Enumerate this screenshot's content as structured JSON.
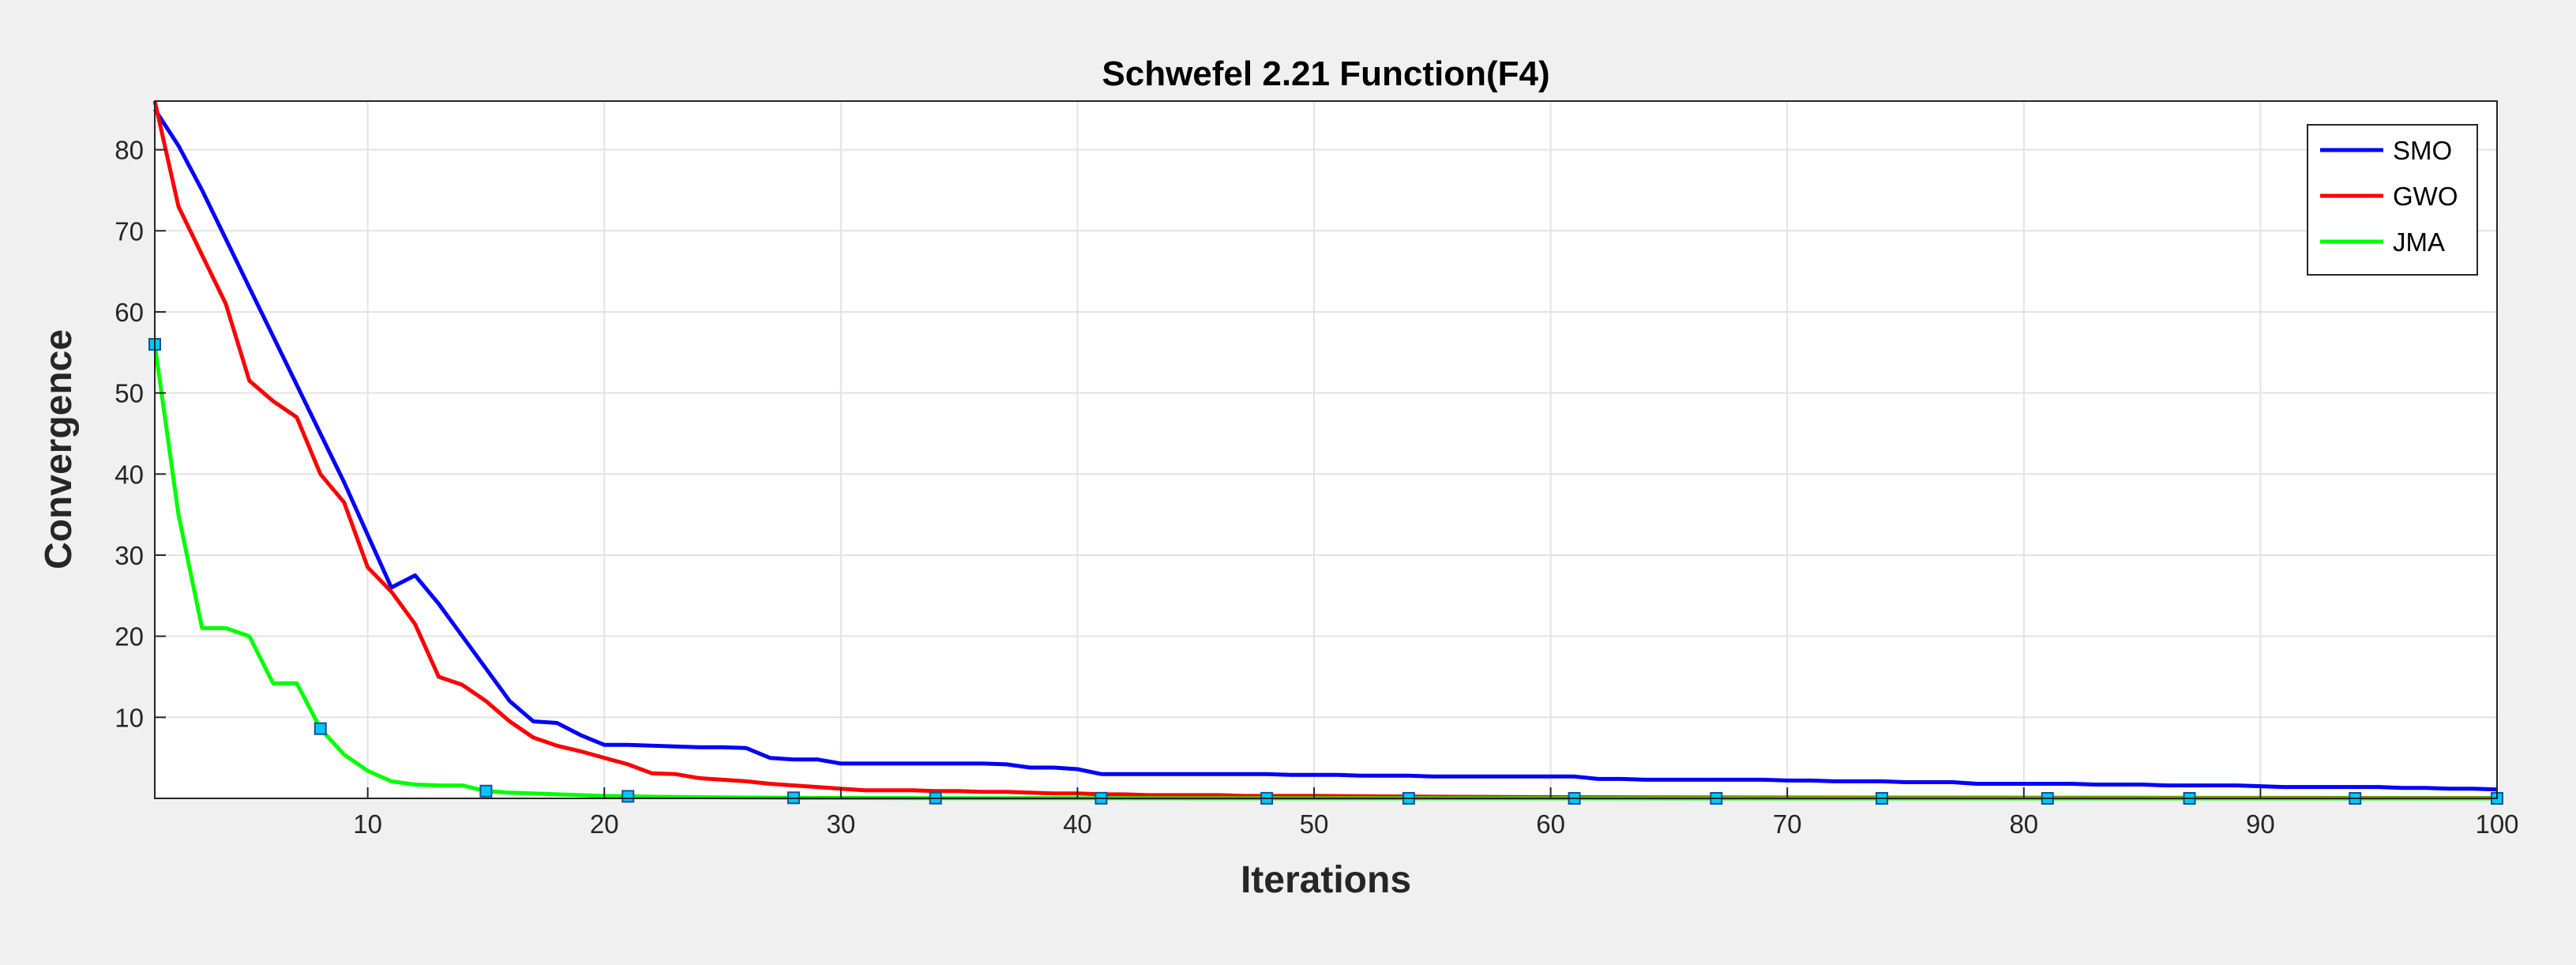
{
  "chart_data": {
    "type": "line",
    "title": "Schwefel 2.21 Function(F4)",
    "xlabel": "Iterations",
    "ylabel": "Convergence",
    "xlim": [
      1,
      100
    ],
    "ylim": [
      0,
      86
    ],
    "xticks": [
      10,
      20,
      30,
      40,
      50,
      60,
      70,
      80,
      90,
      100
    ],
    "yticks": [
      10,
      20,
      30,
      40,
      50,
      60,
      70,
      80
    ],
    "grid": true,
    "legend_position": "top-right",
    "series": [
      {
        "name": "SMO",
        "color": "#0000ff",
        "markers": false,
        "points": [
          [
            1,
            85
          ],
          [
            2,
            80.5
          ],
          [
            3,
            75
          ],
          [
            4,
            69
          ],
          [
            5,
            63
          ],
          [
            6,
            57
          ],
          [
            7,
            51
          ],
          [
            8,
            45
          ],
          [
            9,
            39
          ],
          [
            10,
            32.5
          ],
          [
            11,
            26
          ],
          [
            12,
            27.5
          ],
          [
            13,
            24
          ],
          [
            14,
            20
          ],
          [
            15,
            16
          ],
          [
            16,
            12
          ],
          [
            17,
            9.5
          ],
          [
            18,
            9.3
          ],
          [
            19,
            7.8
          ],
          [
            20,
            6.6
          ],
          [
            21,
            6.6
          ],
          [
            22,
            6.5
          ],
          [
            23,
            6.4
          ],
          [
            24,
            6.3
          ],
          [
            25,
            6.3
          ],
          [
            26,
            6.2
          ],
          [
            27,
            5
          ],
          [
            28,
            4.8
          ],
          [
            29,
            4.8
          ],
          [
            30,
            4.3
          ],
          [
            31,
            4.3
          ],
          [
            32,
            4.3
          ],
          [
            33,
            4.3
          ],
          [
            34,
            4.3
          ],
          [
            35,
            4.3
          ],
          [
            36,
            4.3
          ],
          [
            37,
            4.2
          ],
          [
            38,
            3.8
          ],
          [
            39,
            3.8
          ],
          [
            40,
            3.6
          ],
          [
            41,
            3
          ],
          [
            42,
            3
          ],
          [
            43,
            3
          ],
          [
            44,
            3
          ],
          [
            45,
            3
          ],
          [
            46,
            3
          ],
          [
            47,
            3
          ],
          [
            48,
            3
          ],
          [
            49,
            2.9
          ],
          [
            50,
            2.9
          ],
          [
            51,
            2.9
          ],
          [
            52,
            2.8
          ],
          [
            53,
            2.8
          ],
          [
            54,
            2.8
          ],
          [
            55,
            2.7
          ],
          [
            56,
            2.7
          ],
          [
            57,
            2.7
          ],
          [
            58,
            2.7
          ],
          [
            59,
            2.7
          ],
          [
            60,
            2.7
          ],
          [
            61,
            2.7
          ],
          [
            62,
            2.4
          ],
          [
            63,
            2.4
          ],
          [
            64,
            2.3
          ],
          [
            65,
            2.3
          ],
          [
            66,
            2.3
          ],
          [
            67,
            2.3
          ],
          [
            68,
            2.3
          ],
          [
            69,
            2.3
          ],
          [
            70,
            2.2
          ],
          [
            71,
            2.2
          ],
          [
            72,
            2.1
          ],
          [
            73,
            2.1
          ],
          [
            74,
            2.1
          ],
          [
            75,
            2
          ],
          [
            76,
            2
          ],
          [
            77,
            2
          ],
          [
            78,
            1.8
          ],
          [
            79,
            1.8
          ],
          [
            80,
            1.8
          ],
          [
            81,
            1.8
          ],
          [
            82,
            1.8
          ],
          [
            83,
            1.7
          ],
          [
            84,
            1.7
          ],
          [
            85,
            1.7
          ],
          [
            86,
            1.6
          ],
          [
            87,
            1.6
          ],
          [
            88,
            1.6
          ],
          [
            89,
            1.6
          ],
          [
            90,
            1.5
          ],
          [
            91,
            1.4
          ],
          [
            92,
            1.4
          ],
          [
            93,
            1.4
          ],
          [
            94,
            1.4
          ],
          [
            95,
            1.4
          ],
          [
            96,
            1.3
          ],
          [
            97,
            1.3
          ],
          [
            98,
            1.2
          ],
          [
            99,
            1.2
          ],
          [
            100,
            1.1
          ]
        ]
      },
      {
        "name": "GWO",
        "color": "#ff0000",
        "markers": false,
        "points": [
          [
            1,
            86
          ],
          [
            2,
            73
          ],
          [
            3,
            67
          ],
          [
            4,
            61
          ],
          [
            5,
            51.5
          ],
          [
            6,
            49
          ],
          [
            7,
            47
          ],
          [
            8,
            40
          ],
          [
            9,
            36.5
          ],
          [
            10,
            28.5
          ],
          [
            11,
            25.5
          ],
          [
            12,
            21.5
          ],
          [
            13,
            15
          ],
          [
            14,
            14
          ],
          [
            15,
            12
          ],
          [
            16,
            9.5
          ],
          [
            17,
            7.5
          ],
          [
            18,
            6.5
          ],
          [
            19,
            5.8
          ],
          [
            20,
            5
          ],
          [
            21,
            4.2
          ],
          [
            22,
            3.1
          ],
          [
            23,
            3
          ],
          [
            24,
            2.5
          ],
          [
            25,
            2.3
          ],
          [
            26,
            2.1
          ],
          [
            27,
            1.8
          ],
          [
            28,
            1.6
          ],
          [
            29,
            1.4
          ],
          [
            30,
            1.2
          ],
          [
            31,
            1
          ],
          [
            32,
            1
          ],
          [
            33,
            1
          ],
          [
            34,
            0.9
          ],
          [
            35,
            0.9
          ],
          [
            36,
            0.8
          ],
          [
            37,
            0.8
          ],
          [
            38,
            0.7
          ],
          [
            39,
            0.6
          ],
          [
            40,
            0.6
          ],
          [
            41,
            0.5
          ],
          [
            42,
            0.5
          ],
          [
            43,
            0.4
          ],
          [
            44,
            0.4
          ],
          [
            45,
            0.4
          ],
          [
            46,
            0.4
          ],
          [
            47,
            0.3
          ],
          [
            48,
            0.3
          ],
          [
            49,
            0.3
          ],
          [
            50,
            0.3
          ],
          [
            55,
            0.2
          ],
          [
            60,
            0.15
          ],
          [
            70,
            0.1
          ],
          [
            80,
            0.08
          ],
          [
            90,
            0.06
          ],
          [
            100,
            0.05
          ]
        ]
      },
      {
        "name": "JMA",
        "color": "#00ff00",
        "markers": true,
        "marker_x": [
          1,
          8,
          15,
          21,
          28,
          34,
          41,
          48,
          54,
          61,
          67,
          74,
          81,
          87,
          94,
          100
        ],
        "points": [
          [
            1,
            56
          ],
          [
            2,
            35
          ],
          [
            3,
            21
          ],
          [
            4,
            21
          ],
          [
            5,
            20
          ],
          [
            6,
            14.2
          ],
          [
            7,
            14.2
          ],
          [
            8,
            8.6
          ],
          [
            9,
            5.4
          ],
          [
            10,
            3.4
          ],
          [
            11,
            2.1
          ],
          [
            12,
            1.7
          ],
          [
            13,
            1.6
          ],
          [
            14,
            1.6
          ],
          [
            15,
            0.9
          ],
          [
            16,
            0.7
          ],
          [
            17,
            0.6
          ],
          [
            18,
            0.5
          ],
          [
            19,
            0.4
          ],
          [
            20,
            0.3
          ],
          [
            21,
            0.25
          ],
          [
            22,
            0.2
          ],
          [
            25,
            0.12
          ],
          [
            28,
            0.07
          ],
          [
            30,
            0.05
          ],
          [
            34,
            0.03
          ],
          [
            40,
            0.02
          ],
          [
            50,
            0.01
          ],
          [
            60,
            0.005
          ],
          [
            70,
            0.003
          ],
          [
            80,
            0.002
          ],
          [
            90,
            0.001
          ],
          [
            100,
            0.001
          ]
        ]
      }
    ]
  }
}
